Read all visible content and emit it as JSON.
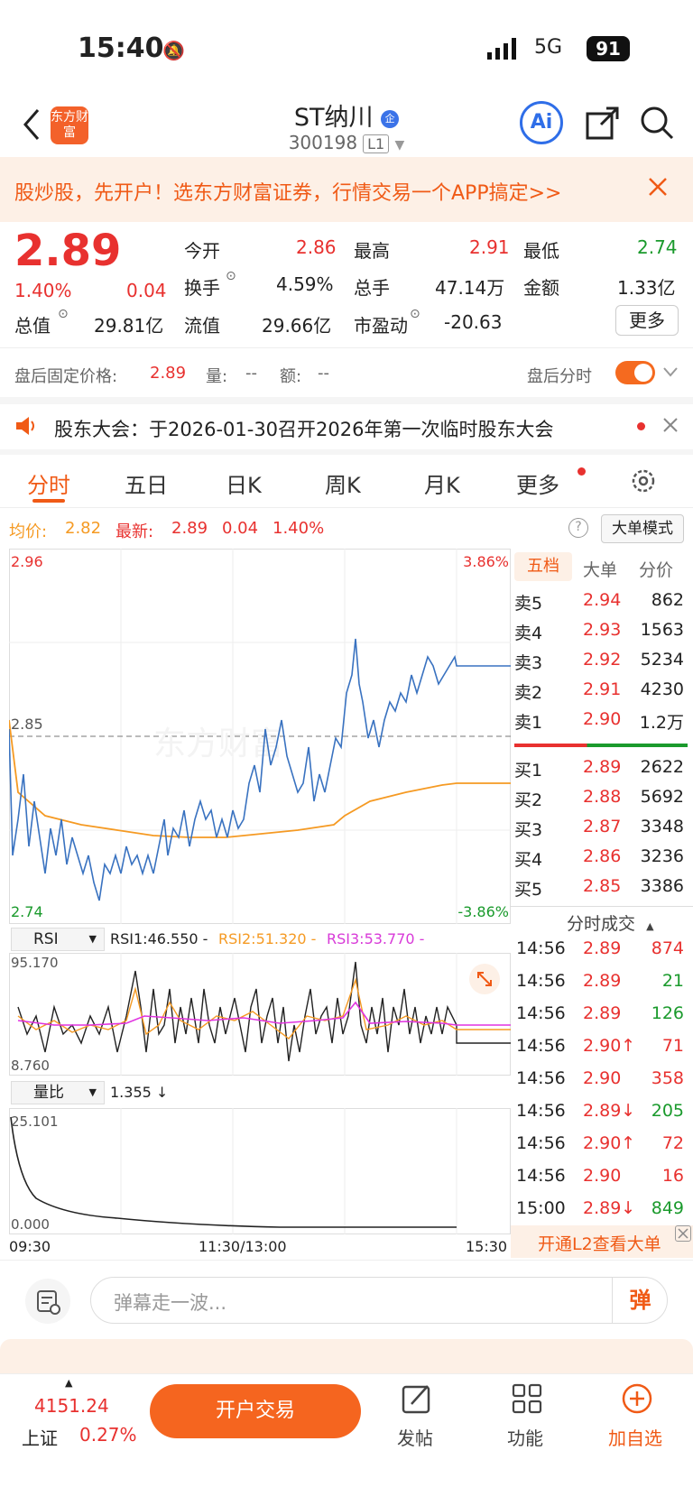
{
  "status_bar": {
    "time": "15:40",
    "network": "5G",
    "battery": "91"
  },
  "header": {
    "logo_text": "东方财富",
    "stock_name": "ST纳川",
    "badge": "企",
    "stock_code": "300198",
    "level": "L1",
    "ai_label": "Ai"
  },
  "banner": {
    "text": "股炒股，先开户！选东方财富证券，行情交易一个APP搞定>>"
  },
  "quote": {
    "price": "2.89",
    "change_pct": "1.40%",
    "change": "0.04",
    "fields": [
      {
        "label": "今开",
        "value": "2.86"
      },
      {
        "label": "最高",
        "value": "2.91"
      },
      {
        "label": "最低",
        "value": "2.74"
      },
      {
        "label": "换手",
        "value": "4.59%"
      },
      {
        "label": "总手",
        "value": "47.14万"
      },
      {
        "label": "金额",
        "value": "1.33亿"
      },
      {
        "label": "总值",
        "value": "29.81亿"
      },
      {
        "label": "流值",
        "value": "29.66亿"
      },
      {
        "label": "市盈动",
        "value": "-20.63"
      }
    ],
    "more": "更多"
  },
  "after_hours": {
    "label": "盘后固定价格:",
    "price": "2.89",
    "vol_label": "量:",
    "vol": "--",
    "amt_label": "额:",
    "amt": "--",
    "intraday_label": "盘后分时"
  },
  "notice": {
    "text": "股东大会：于2026-01-30召开2026年第一次临时股东大会"
  },
  "tabs": [
    "分时",
    "五日",
    "日K",
    "周K",
    "月K",
    "更多"
  ],
  "chart_info": {
    "avg_label": "均价:",
    "avg": "2.82",
    "latest_label": "最新:",
    "latest": "2.89",
    "chg": "0.04",
    "pct": "1.40%",
    "big_order_mode": "大单模式"
  },
  "chart_labels": {
    "top_left": "2.96",
    "top_right": "3.86%",
    "mid": "2.85",
    "bottom_left": "2.74",
    "bottom_right": "-3.86%",
    "rsi_selector": "RSI",
    "rsi1": "RSI1:46.550 -",
    "rsi2": "RSI2:51.320 -",
    "rsi3": "RSI3:53.770 -",
    "rsi_top": "95.170",
    "rsi_bottom": "8.760",
    "vr_selector": "量比",
    "vr_value": "1.355 ↓",
    "vr_top": "25.101",
    "vr_bottom": "0.000",
    "time_start": "09:30",
    "time_mid": "11:30/13:00",
    "time_end": "15:30"
  },
  "order_book_tabs": [
    "五档",
    "大单",
    "分价"
  ],
  "sells": [
    {
      "label": "卖5",
      "price": "2.94",
      "vol": "862"
    },
    {
      "label": "卖4",
      "price": "2.93",
      "vol": "1563"
    },
    {
      "label": "卖3",
      "price": "2.92",
      "vol": "5234"
    },
    {
      "label": "卖2",
      "price": "2.91",
      "vol": "4230"
    },
    {
      "label": "卖1",
      "price": "2.90",
      "vol": "1.2万"
    }
  ],
  "buys": [
    {
      "label": "买1",
      "price": "2.89",
      "vol": "2622"
    },
    {
      "label": "买2",
      "price": "2.88",
      "vol": "5692"
    },
    {
      "label": "买3",
      "price": "2.87",
      "vol": "3348"
    },
    {
      "label": "买4",
      "price": "2.86",
      "vol": "3236"
    },
    {
      "label": "买5",
      "price": "2.85",
      "vol": "3386"
    }
  ],
  "ticks_title": "分时成交",
  "ticks": [
    {
      "time": "14:56",
      "price": "2.89",
      "vol": "874",
      "dir": ""
    },
    {
      "time": "14:56",
      "price": "2.89",
      "vol": "21",
      "dir": ""
    },
    {
      "time": "14:56",
      "price": "2.89",
      "vol": "126",
      "dir": ""
    },
    {
      "time": "14:56",
      "price": "2.90↑",
      "vol": "71",
      "dir": "up"
    },
    {
      "time": "14:56",
      "price": "2.90",
      "vol": "358",
      "dir": ""
    },
    {
      "time": "14:56",
      "price": "2.89↓",
      "vol": "205",
      "dir": "down"
    },
    {
      "time": "14:56",
      "price": "2.90↑",
      "vol": "72",
      "dir": "up"
    },
    {
      "time": "14:56",
      "price": "2.90",
      "vol": "16",
      "dir": ""
    },
    {
      "time": "15:00",
      "price": "2.89↓",
      "vol": "849",
      "dir": "down"
    }
  ],
  "l2_promo": "开通L2查看大单",
  "danmu": {
    "placeholder": "弹幕走一波...",
    "button": "弹"
  },
  "bottom": {
    "index_value": "4151.24",
    "index_name": "上证",
    "index_pct": "0.27%",
    "open_account": "开户交易",
    "post": "发帖",
    "functions": "功能",
    "add_watch": "加自选"
  }
}
